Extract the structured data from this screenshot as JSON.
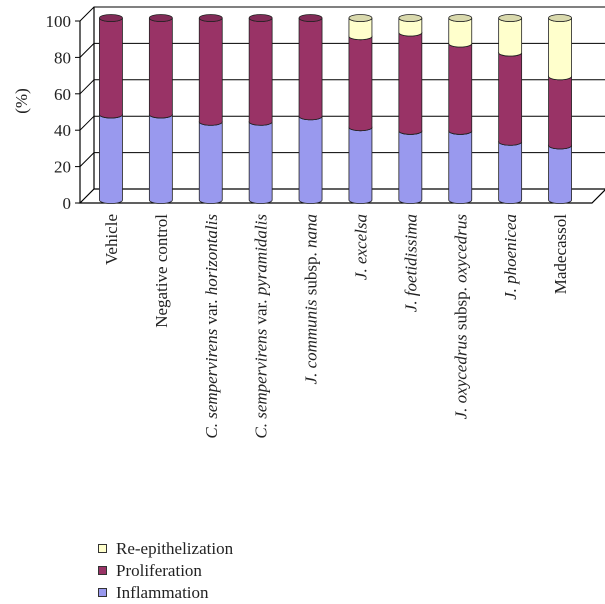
{
  "chart_data": {
    "type": "bar",
    "stacked": true,
    "ylabel": "(%)",
    "ylim": [
      0,
      100
    ],
    "yticks": [
      0,
      20,
      40,
      60,
      80,
      100
    ],
    "grid": true,
    "legend_position": "bottom-left",
    "categories": [
      [
        {
          "t": "Vehicle",
          "i": false
        }
      ],
      [
        {
          "t": "Negative control",
          "i": false
        }
      ],
      [
        {
          "t": "C. sempervirens",
          "i": true
        },
        {
          "t": " var. ",
          "i": false
        },
        {
          "t": "horizontalis",
          "i": true
        }
      ],
      [
        {
          "t": "C. sempervirens",
          "i": true
        },
        {
          "t": " var. ",
          "i": false
        },
        {
          "t": "pyramidalis",
          "i": true
        }
      ],
      [
        {
          "t": "J. communis",
          "i": true
        },
        {
          "t": " subsp. ",
          "i": false
        },
        {
          "t": "nana",
          "i": true
        }
      ],
      [
        {
          "t": "J. excelsa",
          "i": true
        }
      ],
      [
        {
          "t": "J. foetidissima",
          "i": true
        }
      ],
      [
        {
          "t": "J. oxycedrus",
          "i": true
        },
        {
          "t": " subsp. ",
          "i": false
        },
        {
          "t": "oxycedrus",
          "i": true
        }
      ],
      [
        {
          "t": "J. phoenicea",
          "i": true
        }
      ],
      [
        {
          "t": "Madecassol",
          "i": false
        }
      ]
    ],
    "series": [
      {
        "name": "Inflammation",
        "color": "#9999ee",
        "values": [
          47,
          47,
          43,
          43,
          46,
          40,
          38,
          38,
          32,
          30
        ]
      },
      {
        "name": "Proliferation",
        "color": "#993366",
        "values": [
          53,
          53,
          57,
          57,
          54,
          50,
          54,
          48,
          49,
          38
        ]
      },
      {
        "name": "Re-epithelization",
        "color": "#ffffcc",
        "values": [
          0,
          0,
          0,
          0,
          0,
          10,
          8,
          14,
          19,
          32
        ]
      }
    ]
  }
}
